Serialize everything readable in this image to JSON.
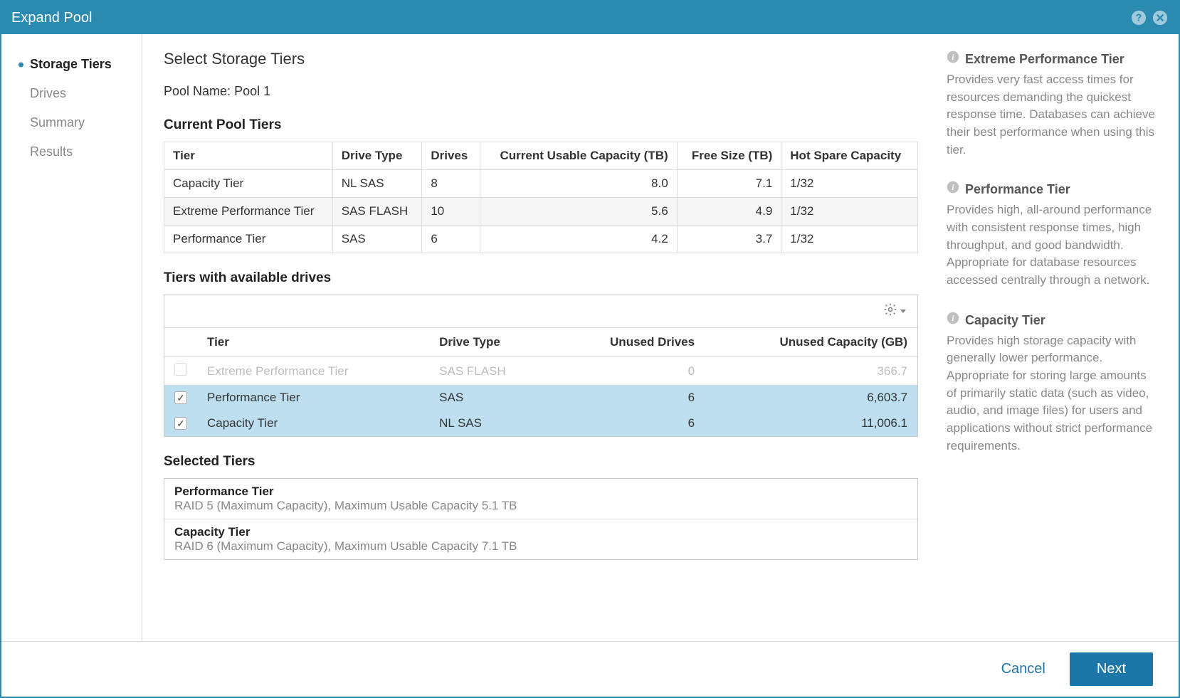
{
  "dialog": {
    "title": "Expand Pool"
  },
  "sidebar": {
    "steps": [
      {
        "label": "Storage Tiers",
        "active": true
      },
      {
        "label": "Drives",
        "active": false
      },
      {
        "label": "Summary",
        "active": false
      },
      {
        "label": "Results",
        "active": false
      }
    ]
  },
  "main": {
    "title": "Select Storage Tiers",
    "poolNameLabel": "Pool Name:",
    "poolName": "Pool 1",
    "currentHeading": "Current Pool Tiers",
    "currentCols": {
      "tier": "Tier",
      "driveType": "Drive Type",
      "drives": "Drives",
      "usable": "Current Usable Capacity (TB)",
      "free": "Free Size (TB)",
      "hotspare": "Hot Spare Capacity"
    },
    "currentRows": [
      {
        "tier": "Capacity Tier",
        "driveType": "NL SAS",
        "drives": "8",
        "usable": "8.0",
        "free": "7.1",
        "hotspare": "1/32"
      },
      {
        "tier": "Extreme Performance Tier",
        "driveType": "SAS FLASH",
        "drives": "10",
        "usable": "5.6",
        "free": "4.9",
        "hotspare": "1/32"
      },
      {
        "tier": "Performance Tier",
        "driveType": "SAS",
        "drives": "6",
        "usable": "4.2",
        "free": "3.7",
        "hotspare": "1/32"
      }
    ],
    "availHeading": "Tiers with available drives",
    "availCols": {
      "tier": "Tier",
      "driveType": "Drive Type",
      "unusedDrives": "Unused Drives",
      "unusedCap": "Unused Capacity (GB)"
    },
    "availRows": [
      {
        "tier": "Extreme Performance Tier",
        "driveType": "SAS FLASH",
        "unusedDrives": "0",
        "unusedCap": "366.7",
        "selected": false,
        "disabled": true
      },
      {
        "tier": "Performance Tier",
        "driveType": "SAS",
        "unusedDrives": "6",
        "unusedCap": "6,603.7",
        "selected": true,
        "disabled": false
      },
      {
        "tier": "Capacity Tier",
        "driveType": "NL SAS",
        "unusedDrives": "6",
        "unusedCap": "11,006.1",
        "selected": true,
        "disabled": false
      }
    ],
    "selectedHeading": "Selected Tiers",
    "selectedTiers": [
      {
        "name": "Performance Tier",
        "desc": "RAID 5 (Maximum Capacity), Maximum Usable Capacity 5.1 TB"
      },
      {
        "name": "Capacity Tier",
        "desc": "RAID 6 (Maximum Capacity), Maximum Usable Capacity 7.1 TB"
      }
    ]
  },
  "info": {
    "extreme": {
      "title": "Extreme Performance Tier",
      "body": "Provides very fast access times for resources demanding the quickest response time. Databases can achieve their best performance when using this tier."
    },
    "performance": {
      "title": "Performance Tier",
      "body": "Provides high, all-around performance with consistent response times, high throughput, and good bandwidth. Appropriate for database resources accessed centrally through a network."
    },
    "capacity": {
      "title": "Capacity Tier",
      "body": "Provides high storage capacity with generally lower performance. Appropriate for storing large amounts of primarily static data (such as video, audio, and image files) for users and applications without strict performance requirements."
    }
  },
  "footer": {
    "cancel": "Cancel",
    "next": "Next"
  },
  "colors": {
    "accent": "#2b8ab0",
    "selectedRow": "#bddff0",
    "border": "#c8c8c8",
    "mutedText": "#888888"
  }
}
